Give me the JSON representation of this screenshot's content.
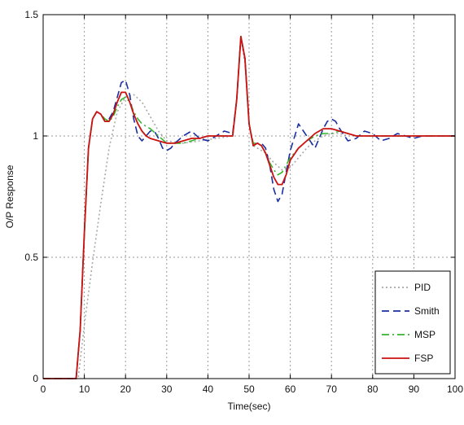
{
  "chart_data": {
    "type": "line",
    "title": "",
    "xlabel": "Time(sec)",
    "ylabel": "O/P Response",
    "xlim": [
      0,
      100
    ],
    "ylim": [
      0,
      1.5
    ],
    "xticks": [
      0,
      10,
      20,
      30,
      40,
      50,
      60,
      70,
      80,
      90,
      100
    ],
    "yticks": [
      0,
      0.5,
      1,
      1.5
    ],
    "grid": true,
    "legend_position": "bottom-right",
    "series": [
      {
        "name": "PID",
        "color": "#a8a8a8",
        "style": "dotted",
        "x": [
          0,
          8.5,
          10,
          12,
          14,
          16,
          18,
          20,
          22,
          24,
          26,
          28,
          30,
          34,
          38,
          42,
          46,
          47,
          48,
          49,
          50,
          51,
          52,
          54,
          56,
          58,
          60,
          62,
          64,
          66,
          68,
          70,
          72,
          74,
          78,
          82,
          86,
          90,
          95,
          100
        ],
        "y": [
          0,
          0,
          0.22,
          0.48,
          0.72,
          0.95,
          1.1,
          1.16,
          1.17,
          1.14,
          1.08,
          1.02,
          0.98,
          0.97,
          0.98,
          0.99,
          1.0,
          1.15,
          1.4,
          1.3,
          1.05,
          0.96,
          0.95,
          0.93,
          0.89,
          0.86,
          0.87,
          0.91,
          0.95,
          0.98,
          1.0,
          1.01,
          1.01,
          1.0,
          1.0,
          1.0,
          1.0,
          1.0,
          1.0,
          1.0
        ]
      },
      {
        "name": "Smith",
        "color": "#1a2fa0",
        "style": "dashed",
        "x": [
          0,
          8,
          9,
          10,
          11,
          12,
          13,
          14,
          15,
          16,
          17,
          18,
          19,
          20,
          21,
          22,
          23,
          24,
          25,
          26,
          27,
          28,
          29,
          30,
          31,
          32,
          34,
          36,
          38,
          40,
          42,
          44,
          46,
          47,
          48,
          49,
          50,
          51,
          52,
          53,
          54,
          55,
          56,
          57,
          58,
          59,
          60,
          62,
          64,
          66,
          68,
          69,
          70,
          71,
          72,
          74,
          76,
          78,
          80,
          82,
          84,
          86,
          88,
          90,
          92,
          95,
          100
        ],
        "y": [
          0,
          0,
          0.2,
          0.6,
          0.95,
          1.07,
          1.1,
          1.09,
          1.06,
          1.07,
          1.1,
          1.16,
          1.22,
          1.23,
          1.17,
          1.07,
          1.0,
          0.98,
          1.0,
          1.02,
          1.02,
          0.99,
          0.95,
          0.94,
          0.95,
          0.97,
          1.0,
          1.02,
          0.99,
          0.98,
          1.0,
          1.02,
          1.01,
          1.15,
          1.41,
          1.32,
          1.05,
          0.96,
          0.97,
          0.97,
          0.95,
          0.88,
          0.78,
          0.73,
          0.76,
          0.85,
          0.94,
          1.05,
          1.0,
          0.95,
          1.03,
          1.06,
          1.07,
          1.06,
          1.03,
          0.98,
          0.99,
          1.02,
          1.01,
          0.98,
          0.99,
          1.01,
          1.0,
          0.99,
          1.0,
          1.0,
          1.0
        ]
      },
      {
        "name": "MSP",
        "color": "#33b52f",
        "style": "dashdot",
        "x": [
          0,
          8,
          9,
          10,
          11,
          12,
          13,
          14,
          15,
          16,
          17,
          18,
          19,
          20,
          21,
          22,
          23,
          24,
          25,
          26,
          28,
          30,
          32,
          34,
          36,
          38,
          40,
          42,
          44,
          46,
          47,
          48,
          49,
          50,
          51,
          52,
          53,
          54,
          55,
          56,
          57,
          58,
          59,
          60,
          62,
          64,
          66,
          68,
          70,
          72,
          74,
          76,
          78,
          80,
          84,
          88,
          92,
          96,
          100
        ],
        "y": [
          0,
          0,
          0.2,
          0.6,
          0.95,
          1.07,
          1.1,
          1.09,
          1.07,
          1.06,
          1.08,
          1.12,
          1.15,
          1.16,
          1.14,
          1.1,
          1.07,
          1.05,
          1.04,
          1.03,
          1.0,
          0.97,
          0.97,
          0.97,
          0.98,
          0.99,
          1.0,
          1.0,
          1.0,
          1.0,
          1.15,
          1.41,
          1.32,
          1.05,
          0.97,
          0.97,
          0.96,
          0.93,
          0.89,
          0.86,
          0.84,
          0.85,
          0.88,
          0.91,
          0.95,
          0.98,
          1.0,
          1.01,
          1.01,
          1.02,
          1.01,
          1.0,
          1.0,
          1.0,
          1.0,
          1.0,
          1.0,
          1.0,
          1.0
        ]
      },
      {
        "name": "FSP",
        "color": "#cc1111",
        "style": "solid",
        "x": [
          0,
          8,
          9,
          10,
          11,
          12,
          13,
          14,
          15,
          16,
          17,
          18,
          19,
          20,
          21,
          22,
          23,
          24,
          25,
          26,
          28,
          30,
          32,
          34,
          36,
          38,
          40,
          42,
          44,
          46,
          47,
          48,
          49,
          50,
          51,
          52,
          53,
          54,
          55,
          56,
          57,
          58,
          59,
          60,
          62,
          64,
          66,
          68,
          70,
          72,
          74,
          76,
          78,
          80,
          84,
          88,
          92,
          96,
          100
        ],
        "y": [
          0,
          0,
          0.2,
          0.6,
          0.95,
          1.07,
          1.1,
          1.09,
          1.06,
          1.06,
          1.09,
          1.14,
          1.18,
          1.18,
          1.14,
          1.09,
          1.05,
          1.02,
          1.0,
          0.99,
          0.98,
          0.97,
          0.97,
          0.98,
          0.99,
          0.99,
          1.0,
          1.0,
          1.0,
          1.0,
          1.15,
          1.41,
          1.32,
          1.05,
          0.96,
          0.97,
          0.96,
          0.93,
          0.88,
          0.83,
          0.8,
          0.8,
          0.84,
          0.9,
          0.95,
          0.98,
          1.01,
          1.03,
          1.03,
          1.02,
          1.01,
          1.0,
          1.0,
          1.0,
          1.0,
          1.0,
          1.0,
          1.0,
          1.0
        ]
      }
    ]
  }
}
